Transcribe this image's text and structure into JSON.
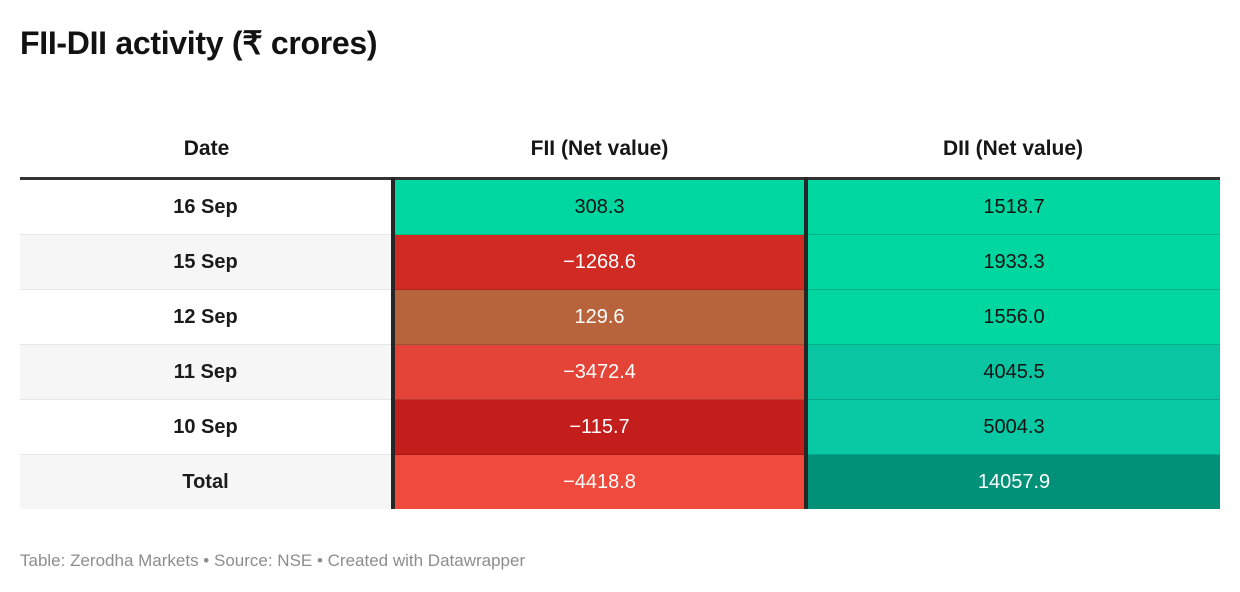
{
  "title": "FII-DII activity (₹ crores)",
  "footer": "Table: Zerodha Markets • Source: NSE • Created with Datawrapper",
  "table": {
    "headers": [
      "Date",
      "FII (Net value)",
      "DII (Net value)"
    ],
    "rows": [
      {
        "date": "16 Sep",
        "zebra": false,
        "fii": {
          "text": "308.3",
          "bg": "#00d6a0",
          "fg": "#121212"
        },
        "dii": {
          "text": "1518.7",
          "bg": "#00d6a0",
          "fg": "#121212"
        }
      },
      {
        "date": "15 Sep",
        "zebra": true,
        "fii": {
          "text": "−1268.6",
          "bg": "#d02a23",
          "fg": "#ffffff"
        },
        "dii": {
          "text": "1933.3",
          "bg": "#00d6a0",
          "fg": "#121212"
        }
      },
      {
        "date": "12 Sep",
        "zebra": false,
        "fii": {
          "text": "129.6",
          "bg": "#b7643c",
          "fg": "#ffffff"
        },
        "dii": {
          "text": "1556.0",
          "bg": "#00d6a0",
          "fg": "#121212"
        }
      },
      {
        "date": "11 Sep",
        "zebra": true,
        "fii": {
          "text": "−3472.4",
          "bg": "#e44437",
          "fg": "#ffffff"
        },
        "dii": {
          "text": "4045.5",
          "bg": "#0ac5a2",
          "fg": "#121212"
        }
      },
      {
        "date": "10 Sep",
        "zebra": false,
        "fii": {
          "text": "−115.7",
          "bg": "#c41e1c",
          "fg": "#ffffff"
        },
        "dii": {
          "text": "5004.3",
          "bg": "#08c9a3",
          "fg": "#121212"
        }
      },
      {
        "date": "Total",
        "zebra": true,
        "fii": {
          "text": "−4418.8",
          "bg": "#f04a3c",
          "fg": "#ffffff"
        },
        "dii": {
          "text": "14057.9",
          "bg": "#009178",
          "fg": "#ffffff"
        }
      }
    ]
  },
  "chart_data": {
    "type": "table",
    "title": "FII-DII activity (₹ crores)",
    "columns": [
      "Date",
      "FII (Net value)",
      "DII (Net value)"
    ],
    "rows": [
      [
        "16 Sep",
        308.3,
        1518.7
      ],
      [
        "15 Sep",
        -1268.6,
        1933.3
      ],
      [
        "12 Sep",
        129.6,
        1556.0
      ],
      [
        "11 Sep",
        -3472.4,
        4045.5
      ],
      [
        "10 Sep",
        -115.7,
        5004.3
      ],
      [
        "Total",
        -4418.8,
        14057.9
      ]
    ]
  },
  "colors": {
    "positive_green": "#00d6a0",
    "teal_mid": "#0ac5a2",
    "teal_dark": "#009178",
    "negative_red": "#d02a23",
    "negative_red_light": "#e44437",
    "negative_red_dark": "#c41e1c",
    "total_red": "#f04a3c",
    "copper_brown": "#b7643c",
    "header_rule": "#333333",
    "column_rule": "#262626",
    "zebra_bg": "#f6f6f6",
    "footer_text": "#8d8d8d"
  }
}
